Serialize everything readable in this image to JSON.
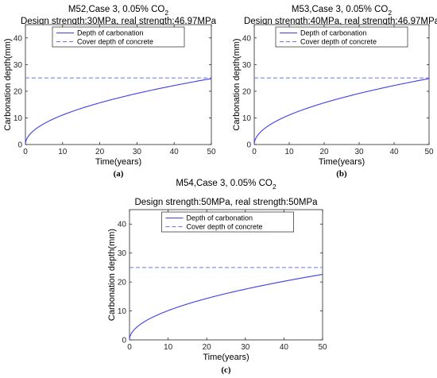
{
  "chart_data": [
    {
      "type": "line",
      "title_prefix": "M52,Case 3, 0.05% CO",
      "title_subscript": "2",
      "subtitle": "Design strength:30MPa, real strength:46.97MPa",
      "xlabel": "Time(years)",
      "ylabel": "Carbonation depth(mm)",
      "xlim": [
        0,
        50
      ],
      "ylim": [
        0,
        45
      ],
      "xticks": [
        0,
        10,
        20,
        30,
        40,
        50
      ],
      "yticks": [
        0,
        10,
        20,
        30,
        40
      ],
      "grid": false,
      "legend_position": "top-center",
      "series": [
        {
          "name": "Depth of carbonation",
          "style": "solid",
          "color": "#3f3fe8",
          "model": "sqrt",
          "k": 3.5,
          "x_max": 50
        },
        {
          "name": "Cover depth of concrete",
          "style": "dashed",
          "color": "#6f6ff0",
          "constant": 25
        }
      ],
      "panel_label": "(a)"
    },
    {
      "type": "line",
      "title_prefix": "M53,Case 3, 0.05% CO",
      "title_subscript": "2",
      "subtitle": "Design strength:40MPa, real strength:46.97MPa",
      "xlabel": "Time(years)",
      "ylabel": "Carbonation depth(mm)",
      "xlim": [
        0,
        50
      ],
      "ylim": [
        0,
        45
      ],
      "xticks": [
        0,
        10,
        20,
        30,
        40,
        50
      ],
      "yticks": [
        0,
        10,
        20,
        30,
        40
      ],
      "grid": false,
      "legend_position": "top-center",
      "series": [
        {
          "name": "Depth of carbonation",
          "style": "solid",
          "color": "#3f3fe8",
          "model": "sqrt",
          "k": 3.5,
          "x_max": 50
        },
        {
          "name": "Cover depth of concrete",
          "style": "dashed",
          "color": "#6f6ff0",
          "constant": 25
        }
      ],
      "panel_label": "(b)"
    },
    {
      "type": "line",
      "title_prefix": "M54,Case 3, 0.05% CO",
      "title_subscript": "2",
      "subtitle": "Design strength:50MPa, real strength:50MPa",
      "xlabel": "Time(years)",
      "ylabel": "Carbonation depth(mm)",
      "xlim": [
        0,
        50
      ],
      "ylim": [
        0,
        45
      ],
      "xticks": [
        0,
        10,
        20,
        30,
        40,
        50
      ],
      "yticks": [
        0,
        10,
        20,
        30,
        40
      ],
      "grid": false,
      "legend_position": "top-center",
      "series": [
        {
          "name": "Depth of carbonation",
          "style": "solid",
          "color": "#3f3fe8",
          "model": "sqrt",
          "k": 3.2,
          "x_max": 50
        },
        {
          "name": "Cover depth of concrete",
          "style": "dashed",
          "color": "#6f6ff0",
          "constant": 25
        }
      ],
      "panel_label": "(c)"
    }
  ]
}
